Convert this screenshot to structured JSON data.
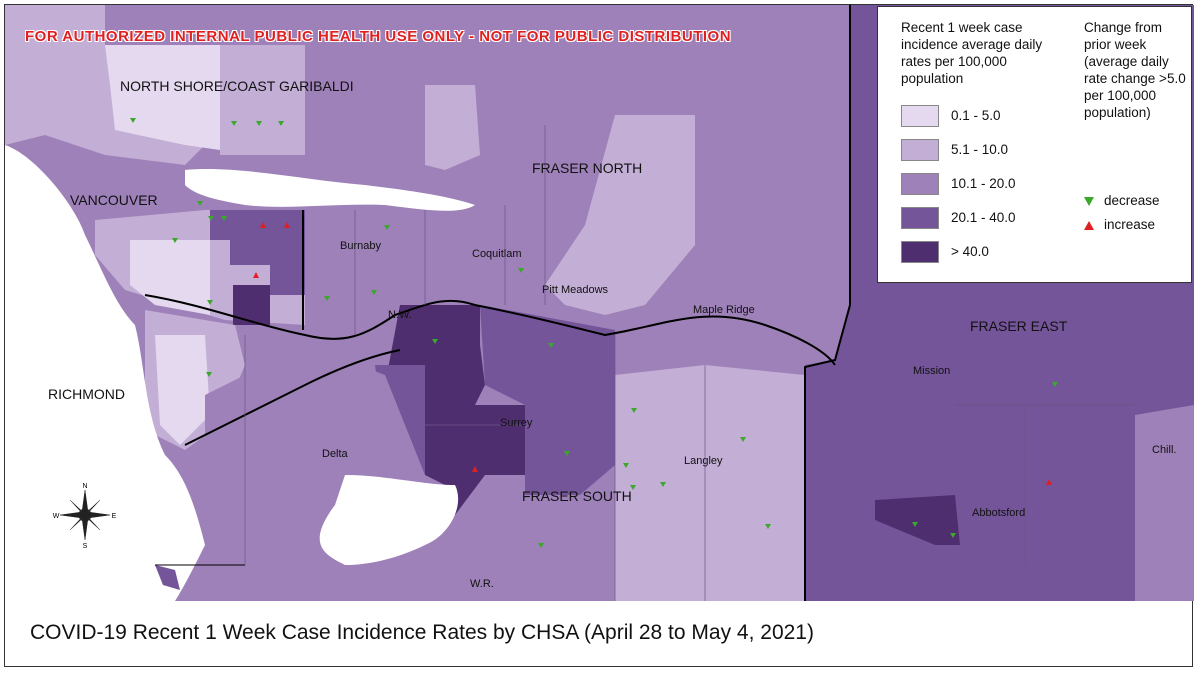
{
  "banner": "FOR AUTHORIZED INTERNAL PUBLIC HEALTH USE ONLY - NOT FOR PUBLIC DISTRIBUTION",
  "caption": "COVID-19 Recent 1 Week Case Incidence Rates by CHSA (April 28 to May 4, 2021)",
  "regions": {
    "north_shore": "NORTH SHORE/COAST GARIBALDI",
    "vancouver": "VANCOUVER",
    "richmond": "RICHMOND",
    "fraser_north": "FRASER NORTH",
    "fraser_south": "FRASER SOUTH",
    "fraser_east": "FRASER EAST"
  },
  "communities": {
    "burnaby": "Burnaby",
    "coquitlam": "Coquitlam",
    "pitt_meadows": "Pitt Meadows",
    "maple_ridge": "Maple Ridge",
    "nw": "N.W.",
    "surrey": "Surrey",
    "delta": "Delta",
    "langley": "Langley",
    "wr": "W.R.",
    "mission": "Mission",
    "abbotsford": "Abbotsford",
    "chill": "Chill."
  },
  "legend": {
    "title": "Recent 1 week case incidence average daily rates per 100,000 population",
    "classes": [
      {
        "label": "0.1 - 5.0",
        "color": "#e4d9ef"
      },
      {
        "label": "5.1 - 10.0",
        "color": "#c3aed6"
      },
      {
        "label": "10.1 - 20.0",
        "color": "#9e81b8"
      },
      {
        "label": "20.1 - 40.0",
        "color": "#75559a"
      },
      {
        "label": "> 40.0",
        "color": "#4f2e70"
      }
    ],
    "change_title": "Change from prior week (average daily rate change >5.0 per 100,000 population)",
    "decrease": "decrease",
    "increase": "increase",
    "decrease_color": "#3aa82a",
    "increase_color": "#e02020"
  },
  "compass": {
    "n": "N",
    "s": "S",
    "e": "E",
    "w": "W"
  }
}
